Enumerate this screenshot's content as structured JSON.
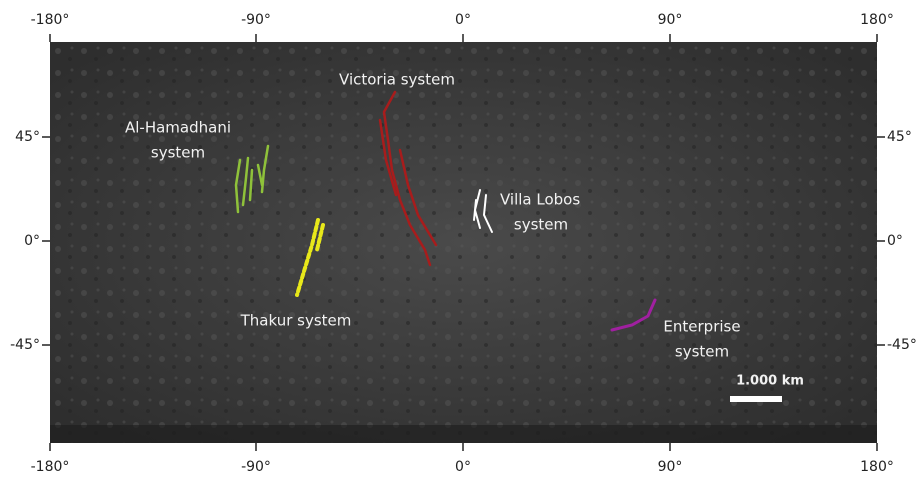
{
  "map": {
    "lon_labels": [
      "-180°",
      "-90°",
      "0°",
      "90°",
      "180°"
    ],
    "lat_labels": [
      "45°",
      "0°",
      "-45°"
    ],
    "systems": [
      {
        "label_lines": [
          "Al-Hamadhani",
          "system"
        ]
      },
      {
        "label_lines": [
          "Victoria system"
        ]
      },
      {
        "label_lines": [
          "Villa Lobos",
          "system"
        ]
      },
      {
        "label_lines": [
          "Thakur system"
        ]
      },
      {
        "label_lines": [
          "Enterprise",
          "system"
        ]
      }
    ],
    "scale_bar": "1.000 km"
  }
}
